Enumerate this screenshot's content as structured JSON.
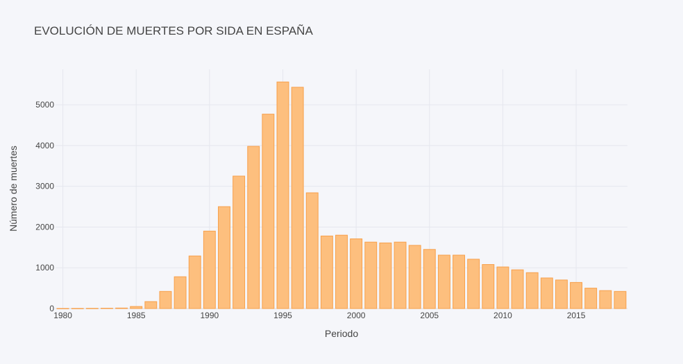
{
  "chart_data": {
    "type": "bar",
    "title": "EVOLUCIÓN DE MUERTES POR SIDA EN ESPAÑA",
    "xlabel": "Periodo",
    "ylabel": "Número de muertes",
    "grid": true,
    "xlim": [
      1979.5,
      2018.5
    ],
    "ylim": [
      0,
      5870
    ],
    "x_ticks": [
      1980,
      1985,
      1990,
      1995,
      2000,
      2005,
      2010,
      2015
    ],
    "y_ticks": [
      0,
      1000,
      2000,
      3000,
      4000,
      5000
    ],
    "colors": {
      "bar_fill": "#fdbf7e",
      "bar_stroke": "#f7a04b",
      "grid": "#e5e7ee",
      "background": "#f5f6fa"
    },
    "x": [
      1980,
      1981,
      1982,
      1983,
      1984,
      1985,
      1986,
      1987,
      1988,
      1989,
      1990,
      1991,
      1992,
      1993,
      1994,
      1995,
      1996,
      1997,
      1998,
      1999,
      2000,
      2001,
      2002,
      2003,
      2004,
      2005,
      2006,
      2007,
      2008,
      2009,
      2010,
      2011,
      2012,
      2013,
      2014,
      2015,
      2016,
      2017,
      2018
    ],
    "values": [
      2,
      3,
      5,
      8,
      12,
      50,
      170,
      420,
      780,
      1290,
      1900,
      2500,
      3250,
      3980,
      4770,
      5560,
      5430,
      2840,
      1780,
      1800,
      1710,
      1630,
      1610,
      1630,
      1550,
      1450,
      1310,
      1310,
      1210,
      1080,
      1020,
      950,
      880,
      750,
      700,
      640,
      500,
      440,
      420
    ]
  }
}
